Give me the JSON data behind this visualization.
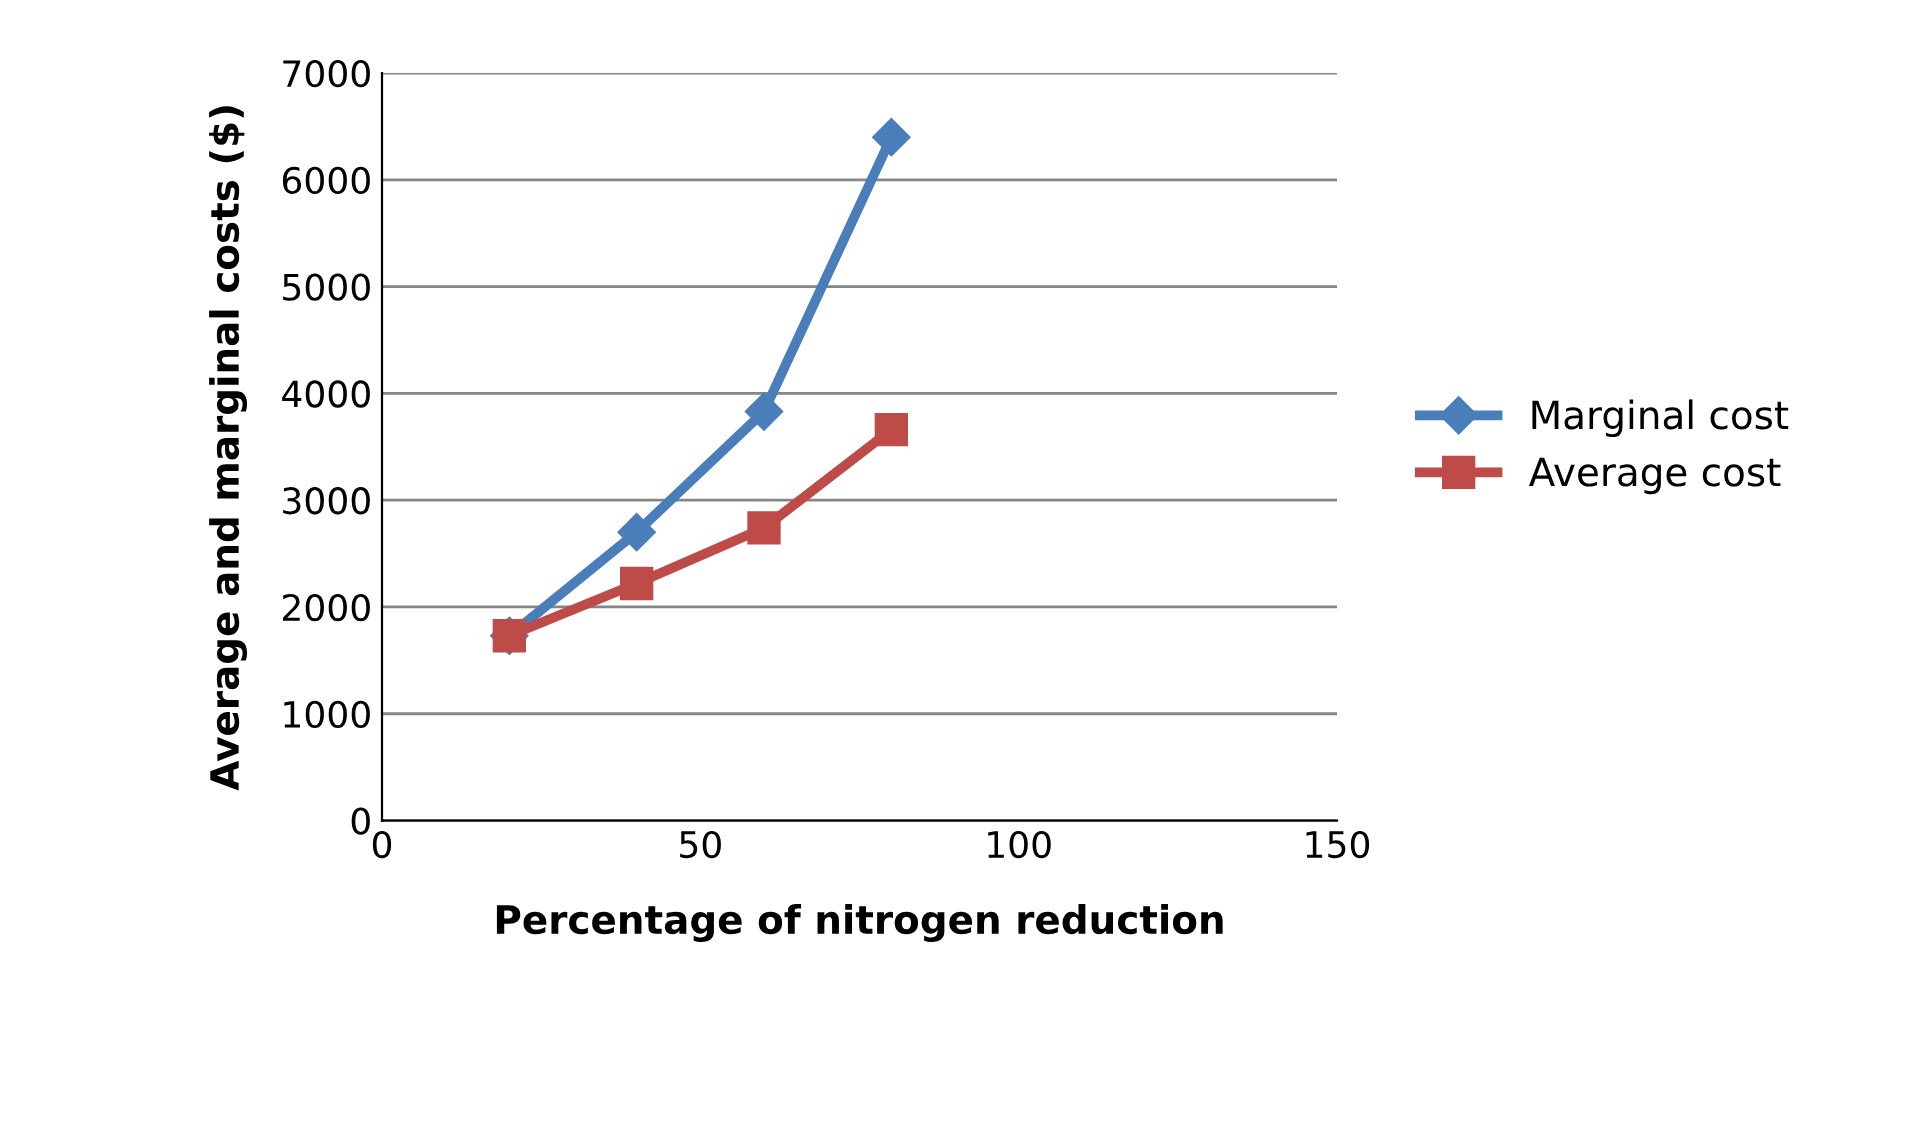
{
  "chart_data": {
    "type": "line",
    "xlabel": "Percentage of nitrogen reduction",
    "ylabel": "Average and marginal costs ($)",
    "x": [
      20,
      40,
      60,
      80
    ],
    "series": [
      {
        "name": "Marginal cost",
        "color": "#4a7ebb",
        "marker": "diamond",
        "values": [
          1730,
          2700,
          3830,
          6400
        ]
      },
      {
        "name": "Average cost",
        "color": "#be4b48",
        "marker": "square",
        "values": [
          1730,
          2220,
          2740,
          3660
        ]
      }
    ],
    "xlim": [
      0,
      150
    ],
    "xticks": [
      0,
      50,
      100,
      150
    ],
    "ylim": [
      0,
      7000
    ],
    "yticks": [
      0,
      1000,
      2000,
      3000,
      4000,
      5000,
      6000,
      7000
    ],
    "grid": "y",
    "legend": "right",
    "line_style": "solid"
  }
}
